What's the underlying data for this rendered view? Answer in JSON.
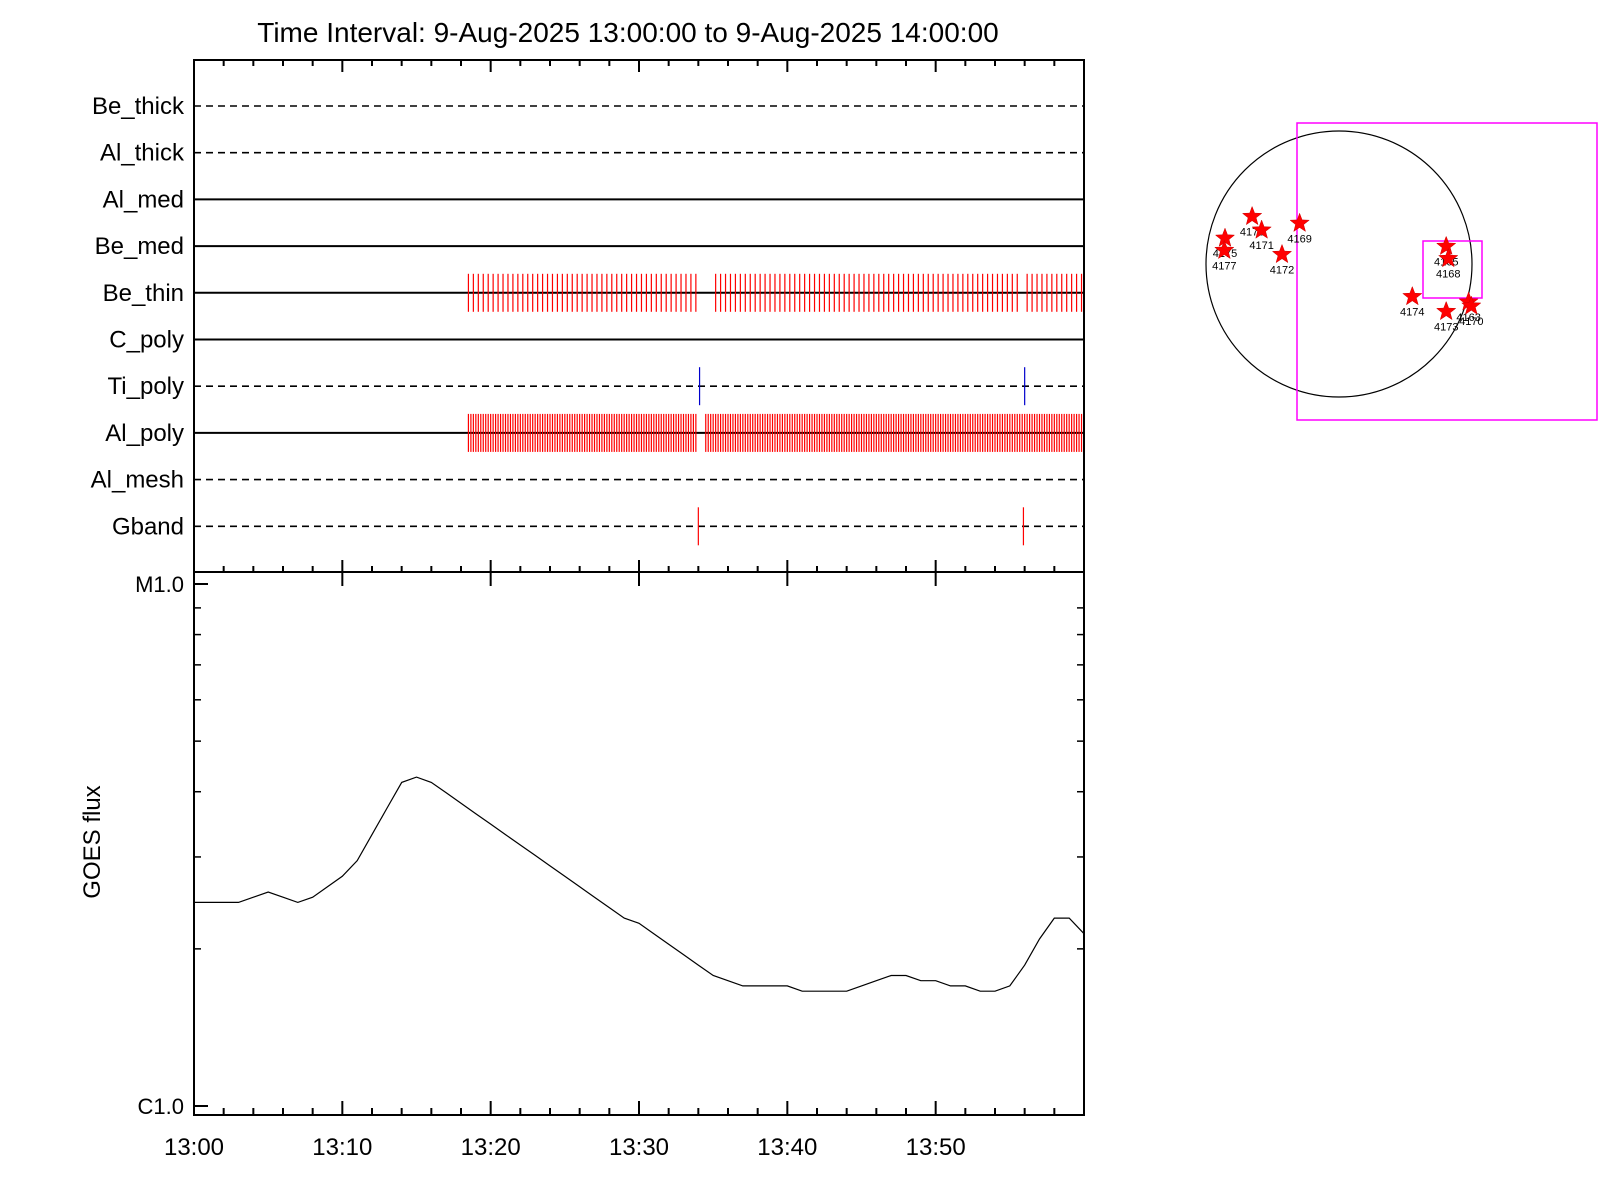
{
  "title": "Time Interval:  9-Aug-2025 13:00:00 to  9-Aug-2025 14:00:00",
  "chart_data": [
    {
      "type": "timeline",
      "name": "filter-timeline",
      "xlim": [
        "13:00",
        "14:00"
      ],
      "rows": [
        {
          "label": "Be_thick",
          "style": "dashed",
          "events": []
        },
        {
          "label": "Al_thick",
          "style": "dashed",
          "events": []
        },
        {
          "label": "Al_med",
          "style": "solid",
          "events": []
        },
        {
          "label": "Be_med",
          "style": "solid",
          "events": []
        },
        {
          "label": "Be_thin",
          "style": "solid",
          "event_color": "#ff0000",
          "event_span": [
            "13:18:30",
            "13:59:50"
          ],
          "event_interval_s": 20,
          "gaps": [
            [
              "13:34:00",
              "13:34:50"
            ],
            [
              "13:55:40",
              "13:56:10"
            ]
          ]
        },
        {
          "label": "C_poly",
          "style": "solid",
          "events": []
        },
        {
          "label": "Ti_poly",
          "style": "dashed",
          "event_color": "#0000cc",
          "events": [
            "13:34:05",
            "13:56:00"
          ]
        },
        {
          "label": "Al_poly",
          "style": "solid",
          "event_color": "#ff0000",
          "event_span": [
            "13:18:30",
            "13:59:50"
          ],
          "event_interval_s": 10,
          "gaps": [
            [
              "13:34:00",
              "13:34:30"
            ]
          ]
        },
        {
          "label": "Al_mesh",
          "style": "dashed",
          "events": []
        },
        {
          "label": "Gband",
          "style": "dashed",
          "event_color": "#ff0000",
          "events": [
            "13:34:00",
            "13:55:55"
          ]
        }
      ]
    },
    {
      "type": "line",
      "name": "goes-flux",
      "ylabel": "GOES flux",
      "y_ticks": [
        "C1.0",
        "M1.0"
      ],
      "ylim": [
        0.0,
        1.0
      ],
      "x_ticks": [
        "13:00",
        "13:10",
        "13:20",
        "13:30",
        "13:40",
        "13:50"
      ],
      "xlim_minutes": [
        0,
        60
      ],
      "series": [
        {
          "x": [
            0,
            3,
            5,
            6,
            7,
            8,
            10,
            11,
            12,
            13,
            14,
            15,
            16,
            17,
            18,
            19,
            20,
            21,
            22,
            23,
            24,
            25,
            26,
            27,
            28,
            29,
            30,
            31,
            32,
            33,
            34,
            35,
            36,
            37,
            38,
            39,
            40,
            41,
            42,
            43,
            44,
            45,
            46,
            47,
            48,
            49,
            50,
            51,
            52,
            53,
            54,
            55,
            56,
            57,
            58,
            59,
            60
          ],
          "y": [
            0.39,
            0.39,
            0.41,
            0.4,
            0.39,
            0.4,
            0.44,
            0.47,
            0.52,
            0.57,
            0.62,
            0.63,
            0.62,
            0.6,
            0.58,
            0.56,
            0.54,
            0.52,
            0.5,
            0.48,
            0.46,
            0.44,
            0.42,
            0.4,
            0.38,
            0.36,
            0.35,
            0.33,
            0.31,
            0.29,
            0.27,
            0.25,
            0.24,
            0.23,
            0.23,
            0.23,
            0.23,
            0.22,
            0.22,
            0.22,
            0.22,
            0.23,
            0.24,
            0.25,
            0.25,
            0.24,
            0.24,
            0.23,
            0.23,
            0.22,
            0.22,
            0.23,
            0.27,
            0.32,
            0.36,
            0.36,
            0.33
          ]
        }
      ]
    },
    {
      "type": "scatter",
      "name": "solar-disk-map",
      "points": [
        {
          "label": "4176",
          "x": -640,
          "y": 350
        },
        {
          "label": "4171",
          "x": -570,
          "y": 250
        },
        {
          "label": "4169",
          "x": -290,
          "y": 300
        },
        {
          "label": "4175",
          "x": -840,
          "y": 190
        },
        {
          "label": "4177",
          "x": -845,
          "y": 100
        },
        {
          "label": "4172",
          "x": -420,
          "y": 70
        },
        {
          "label": "4165",
          "x": 790,
          "y": 130
        },
        {
          "label": "4168",
          "x": 805,
          "y": 40
        },
        {
          "label": "4174",
          "x": 540,
          "y": -240
        },
        {
          "label": "4173",
          "x": 790,
          "y": -350
        },
        {
          "label": "4163",
          "x": 955,
          "y": -280
        },
        {
          "label": "4170",
          "x": 975,
          "y": -310
        }
      ]
    }
  ]
}
